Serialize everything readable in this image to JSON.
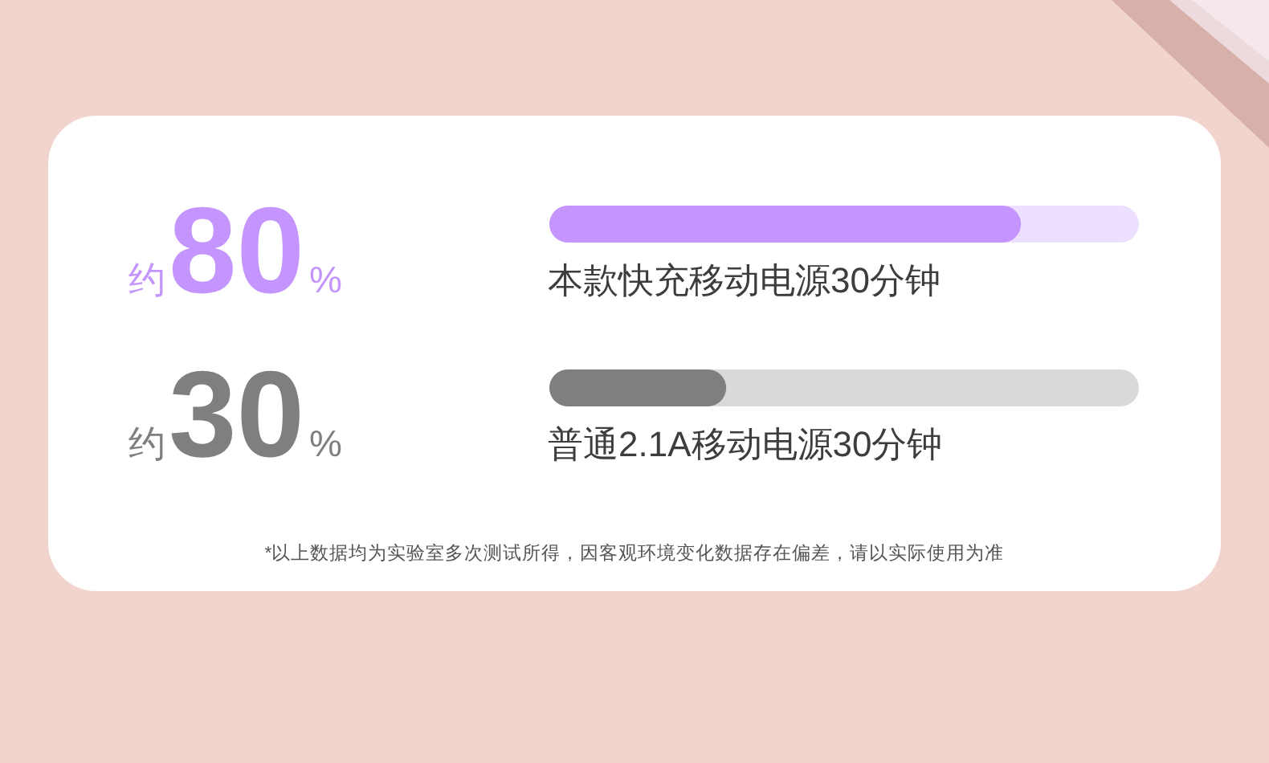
{
  "chart_data": {
    "type": "bar",
    "orientation": "horizontal",
    "categories": [
      "本款快充移动电源30分钟",
      "普通2.1A移动电源30分钟"
    ],
    "values": [
      80,
      30
    ],
    "colors": [
      "#c495fc",
      "#7f7f7f"
    ],
    "xlim": [
      0,
      100
    ],
    "value_labels": [
      "约80%",
      "约30%"
    ],
    "annotations": [
      "*以上数据均为实验室多次测试所得，因客观环境变化数据存在偏差，请以实际使用为准"
    ]
  }
}
